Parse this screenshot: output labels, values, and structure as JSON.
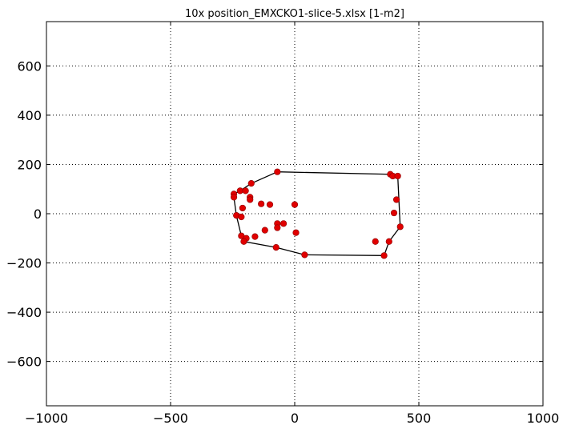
{
  "chart_data": {
    "type": "scatter",
    "title": "10x position_EMXCKO1-slice-5.xlsx   [1-m2]",
    "xlabel": "",
    "ylabel": "",
    "xlim": [
      -1000,
      1000
    ],
    "ylim": [
      -780,
      780
    ],
    "xticks": [
      -1000,
      -500,
      0,
      500,
      1000
    ],
    "xtick_labels": [
      "−1000",
      "−500",
      "0",
      "500",
      "1000"
    ],
    "yticks": [
      -600,
      -400,
      -200,
      0,
      200,
      400,
      600
    ],
    "ytick_labels": [
      "−600",
      "−400",
      "−200",
      "0",
      "200",
      "400",
      "600"
    ],
    "grid": true,
    "grid_style": "dotted",
    "point_color": "#e00000",
    "hull_color": "#000000",
    "points": [
      [
        -70,
        170
      ],
      [
        -175,
        123
      ],
      [
        -220,
        93
      ],
      [
        -198,
        93
      ],
      [
        -245,
        80
      ],
      [
        -245,
        67
      ],
      [
        -180,
        67
      ],
      [
        -180,
        57
      ],
      [
        -135,
        40
      ],
      [
        -100,
        37
      ],
      [
        0,
        37
      ],
      [
        -210,
        23
      ],
      [
        -235,
        -7
      ],
      [
        -215,
        -13
      ],
      [
        -70,
        -40
      ],
      [
        -45,
        -40
      ],
      [
        -70,
        -57
      ],
      [
        -120,
        -67
      ],
      [
        5,
        -77
      ],
      [
        -215,
        -90
      ],
      [
        -160,
        -93
      ],
      [
        -195,
        -100
      ],
      [
        -205,
        -113
      ],
      [
        -75,
        -137
      ],
      [
        40,
        -167
      ],
      [
        385,
        160
      ],
      [
        395,
        153
      ],
      [
        415,
        153
      ],
      [
        410,
        57
      ],
      [
        400,
        3
      ],
      [
        425,
        -53
      ],
      [
        325,
        -113
      ],
      [
        380,
        -113
      ],
      [
        360,
        -170
      ]
    ],
    "hull": [
      [
        -70,
        170
      ],
      [
        385,
        160
      ],
      [
        415,
        153
      ],
      [
        425,
        -53
      ],
      [
        380,
        -113
      ],
      [
        360,
        -170
      ],
      [
        40,
        -167
      ],
      [
        -75,
        -137
      ],
      [
        -205,
        -113
      ],
      [
        -215,
        -90
      ],
      [
        -235,
        -7
      ],
      [
        -245,
        67
      ],
      [
        -245,
        80
      ],
      [
        -220,
        93
      ],
      [
        -175,
        123
      ],
      [
        -70,
        170
      ]
    ]
  }
}
